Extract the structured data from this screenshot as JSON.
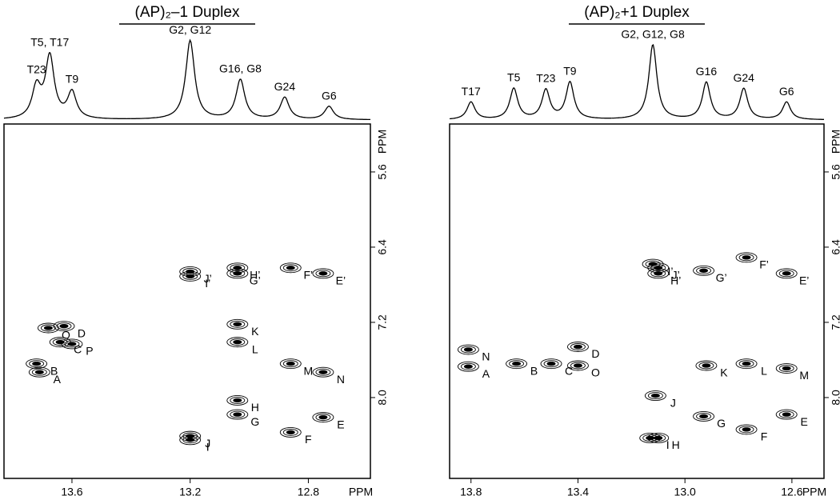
{
  "chart_data": [
    {
      "type": "nmr2d",
      "title": "(AP)₂–1 Duplex",
      "x_label": "PPM",
      "y_label": "PPM",
      "color": "#000000",
      "xlim": [
        13.83,
        12.59
      ],
      "ylim": [
        5.09,
        8.86
      ],
      "xticks": [
        13.6,
        13.2,
        12.8
      ],
      "yticks": [
        5.6,
        6.4,
        7.2,
        {
          "value": 8,
          "label": "8.0"
        }
      ],
      "spectrum": {
        "labels": [
          "T23",
          "T5, T17",
          "T9",
          "G2, G12",
          "G16, G8",
          "G24",
          "G6"
        ],
        "x": [
          13.72,
          13.675,
          13.6,
          13.2,
          13.03,
          12.88,
          12.73
        ],
        "heights": [
          0.35,
          0.7,
          0.3,
          0.9,
          0.45,
          0.25,
          0.15
        ]
      },
      "peaks": {
        "labels": [
          "D",
          "O",
          "C",
          "P",
          "B",
          "A",
          "J’",
          "I’",
          "H’",
          "G’",
          "F’",
          "E’",
          "K",
          "L",
          "M",
          "N",
          "H",
          "G",
          "J",
          "I",
          "F",
          "E"
        ],
        "x": [
          13.627,
          13.68,
          13.64,
          13.6,
          13.72,
          13.71,
          13.2,
          13.2,
          13.04,
          13.04,
          12.86,
          12.75,
          13.04,
          13.04,
          12.86,
          12.75,
          13.04,
          13.04,
          13.2,
          13.2,
          12.86,
          12.75
        ],
        "y": [
          7.24,
          7.26,
          7.41,
          7.43,
          7.64,
          7.73,
          6.66,
          6.71,
          6.62,
          6.68,
          6.62,
          6.68,
          7.22,
          7.41,
          7.64,
          7.73,
          8.03,
          8.18,
          8.41,
          8.45,
          8.37,
          8.21
        ]
      }
    },
    {
      "type": "nmr2d",
      "title": "(AP)₂+1 Duplex",
      "x_label": "PPM",
      "y_label": "PPM",
      "color": "#000000",
      "xlim": [
        13.88,
        12.48
      ],
      "ylim": [
        5.09,
        8.86
      ],
      "xticks": [
        13.8,
        13.4,
        {
          "value": 13,
          "label": "13.0"
        },
        12.6
      ],
      "yticks": [
        5.6,
        6.4,
        7.2,
        {
          "value": 8,
          "label": "8.0"
        }
      ],
      "spectrum": {
        "labels": [
          "T17",
          "T5",
          "T23",
          "T9",
          "G2, G12, G8",
          "G16",
          "G24",
          "G6"
        ],
        "x": [
          13.8,
          13.64,
          13.52,
          13.43,
          13.12,
          12.92,
          12.78,
          12.62
        ],
        "heights": [
          0.2,
          0.35,
          0.33,
          0.42,
          0.85,
          0.42,
          0.35,
          0.2
        ]
      },
      "peaks": {
        "labels": [
          "N",
          "A",
          "B",
          "C",
          "D",
          "O",
          "I’",
          "J’",
          "H’",
          "G’",
          "F’",
          "E’",
          "K",
          "L",
          "M",
          "J",
          "G",
          "E",
          "F",
          "I",
          "H"
        ],
        "x": [
          13.81,
          13.81,
          13.63,
          13.5,
          13.4,
          13.4,
          13.12,
          13.1,
          13.1,
          12.93,
          12.77,
          12.62,
          12.92,
          12.77,
          12.62,
          13.11,
          12.93,
          12.62,
          12.77,
          13.13,
          13.1
        ],
        "y": [
          7.49,
          7.67,
          7.64,
          7.64,
          7.46,
          7.66,
          6.58,
          6.62,
          6.68,
          6.65,
          6.51,
          6.68,
          7.66,
          7.64,
          7.69,
          7.98,
          8.2,
          8.18,
          8.34,
          8.43,
          8.43
        ]
      }
    }
  ]
}
